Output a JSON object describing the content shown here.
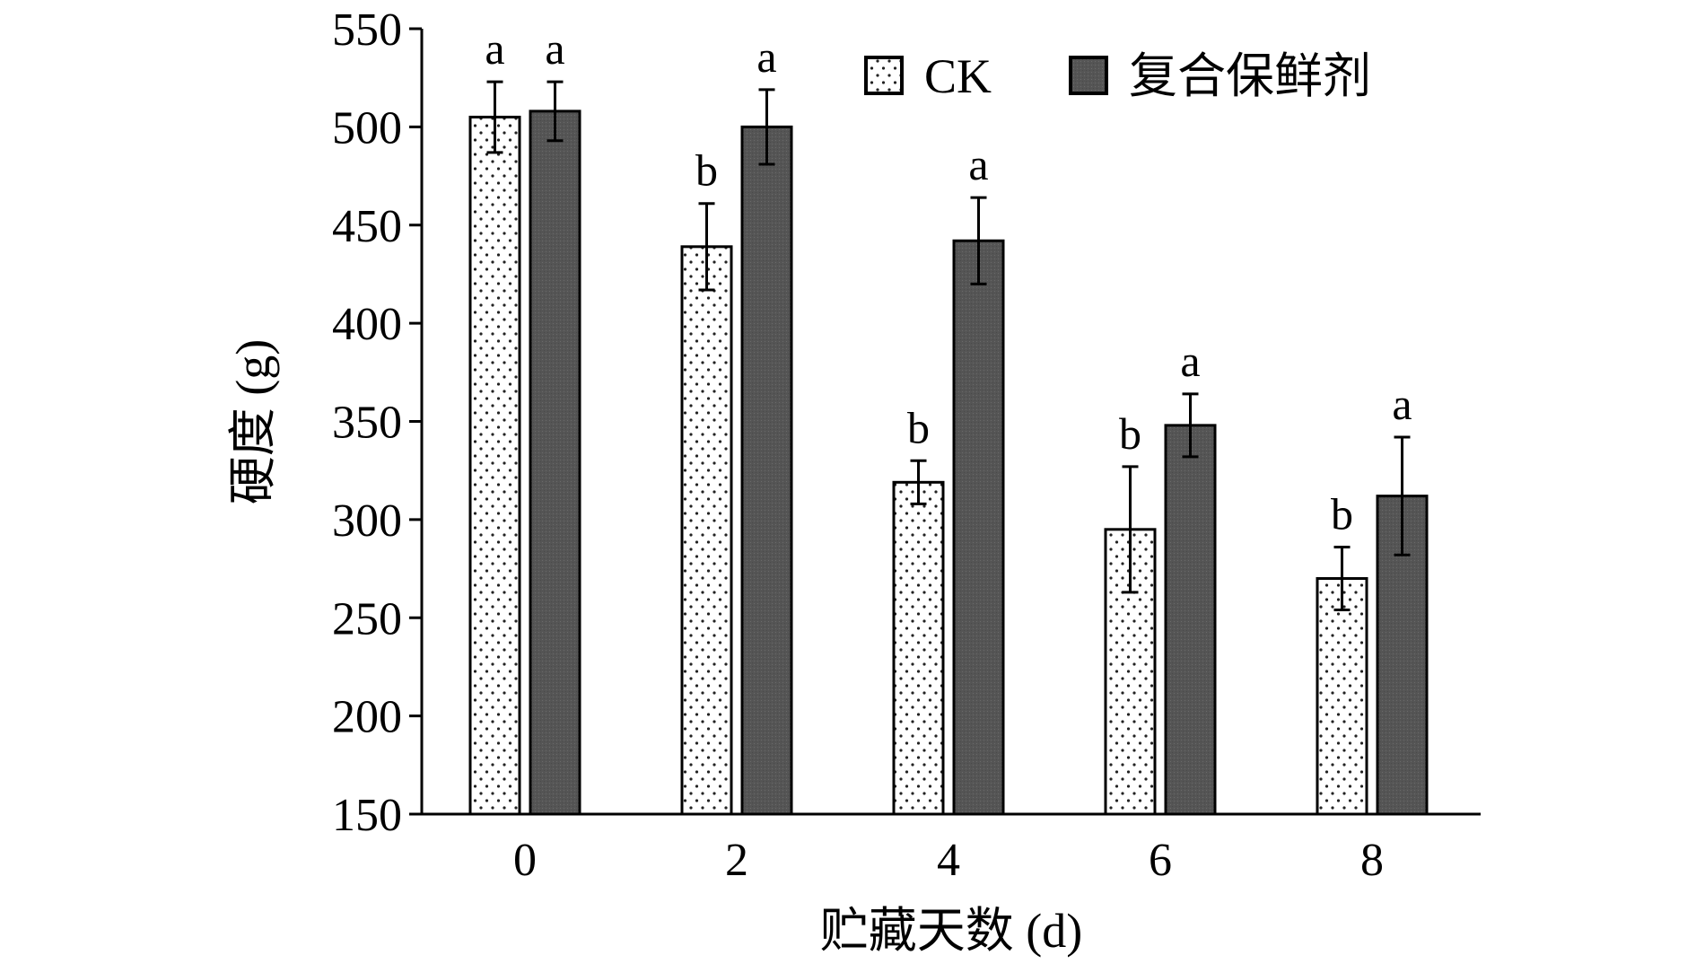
{
  "chart_data": {
    "type": "bar",
    "xlabel": "贮藏天数 (d)",
    "ylabel": "硬度 (g)",
    "categories": [
      "0",
      "2",
      "4",
      "6",
      "8"
    ],
    "ylim": [
      150,
      550
    ],
    "yticks": [
      150,
      200,
      250,
      300,
      350,
      400,
      450,
      500,
      550
    ],
    "legend_position": "top-right",
    "grid": false,
    "series": [
      {
        "name": "CK",
        "pattern": "dotted",
        "fill": "#ffffff",
        "values": [
          505,
          439,
          319,
          295,
          270
        ],
        "errors": [
          18,
          22,
          11,
          32,
          16
        ],
        "significance": [
          "a",
          "b",
          "b",
          "b",
          "b"
        ]
      },
      {
        "name": "复合保鲜剂",
        "pattern": "solid",
        "fill": "#555555",
        "values": [
          508,
          500,
          442,
          348,
          312
        ],
        "errors": [
          15,
          19,
          22,
          16,
          30
        ],
        "significance": [
          "a",
          "a",
          "a",
          "a",
          "a"
        ]
      }
    ]
  }
}
